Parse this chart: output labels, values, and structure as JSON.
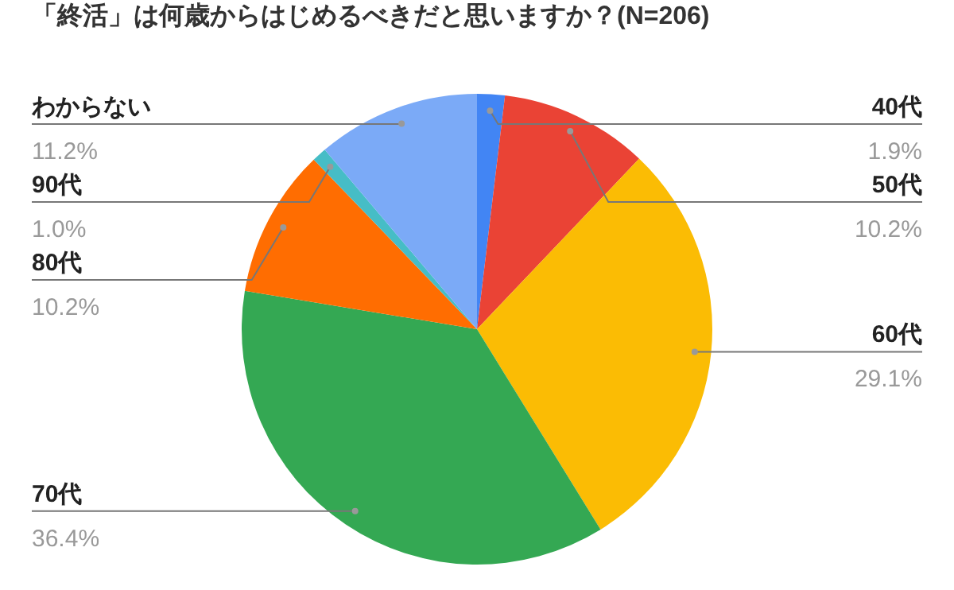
{
  "chart_data": {
    "type": "pie",
    "title": "「終活」は何歳からはじめるべきだと思いますか？(N=206)",
    "categories": [
      "40代",
      "50代",
      "60代",
      "70代",
      "80代",
      "90代",
      "わからない"
    ],
    "values": [
      1.9,
      10.2,
      29.1,
      36.4,
      10.2,
      1.0,
      11.2
    ],
    "colors": [
      "#4285f4",
      "#ea4335",
      "#fbbc04",
      "#34a853",
      "#ff6d01",
      "#46bdc6",
      "#7baaf7"
    ],
    "value_labels": [
      "1.9%",
      "10.2%",
      "29.1%",
      "36.4%",
      "10.2%",
      "1.0%",
      "11.2%"
    ],
    "legend": false
  }
}
